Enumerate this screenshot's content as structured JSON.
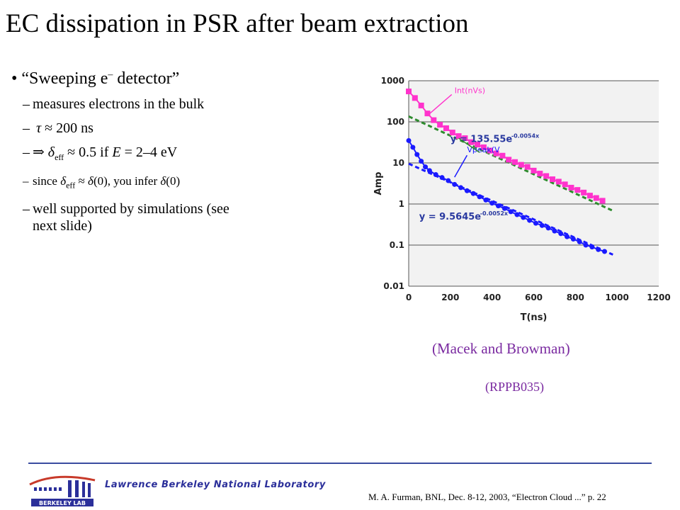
{
  "slide": {
    "title": "EC dissipation in PSR after beam extraction",
    "bullet": "“Sweeping e",
    "bullet_sup": "–",
    "bullet_tail": " detector”",
    "sub1": "measures electrons in the bulk",
    "sub2_sym": "τ",
    "sub2_text": " ≈ 200 ns",
    "sub3_arrow": "⇒",
    "sub3_sym": "δ",
    "sub3_sub": "eff",
    "sub3_mid": " ≈ 0.5 if ",
    "sub3_E": "E",
    "sub3_tail": " = 2–4 eV",
    "sub4_a": "since ",
    "sub4_sym": "δ",
    "sub4_sub": "eff",
    "sub4_b": " ≈ ",
    "sub4_sym2": "δ",
    "sub4_c": "(0), you infer ",
    "sub4_sym3": "δ",
    "sub4_d": "(0)",
    "sub5_l1": "well supported by simulations (see",
    "sub5_l2": "next slide)",
    "caption1": "(Macek and Browman)",
    "caption2": "(RPPB035)"
  },
  "footer": {
    "lab": "Lawrence Berkeley National Laboratory",
    "citation": "M. A. Furman, BNL, Dec. 8-12, 2003, “Electron Cloud ...”  p. 22"
  },
  "chart_data": {
    "type": "scatter",
    "xlabel": "T(ns)",
    "ylabel": "Amp",
    "y_scale": "log",
    "xlim": [
      0,
      1200
    ],
    "ylim": [
      0.01,
      1000
    ],
    "x_ticks": [
      "0",
      "200",
      "400",
      "600",
      "800",
      "1000",
      "1200"
    ],
    "y_ticks": [
      "1000",
      "100",
      "10",
      "1",
      "0.1",
      "0.01"
    ],
    "grid": "horizontal",
    "series": [
      {
        "name": "Int(nVs)",
        "color": "#ff33cc",
        "marker": "square",
        "x": [
          0,
          30,
          60,
          90,
          120,
          150,
          180,
          210,
          240,
          270,
          300,
          330,
          360,
          390,
          420,
          450,
          480,
          510,
          540,
          570,
          600,
          630,
          660,
          690,
          720,
          750,
          780,
          810,
          840,
          870,
          900,
          930
        ],
        "y": [
          550,
          380,
          250,
          160,
          110,
          85,
          70,
          55,
          45,
          40,
          32,
          28,
          24,
          20,
          17,
          15,
          12,
          10.5,
          9,
          8,
          6.5,
          5.5,
          4.8,
          4,
          3.5,
          3,
          2.5,
          2.2,
          1.9,
          1.6,
          1.4,
          1.2
        ]
      },
      {
        "name": "Vpeak(V)",
        "color": "#1a1aff",
        "marker": "circle",
        "x": [
          0,
          20,
          40,
          60,
          80,
          100,
          130,
          160,
          190,
          220,
          250,
          280,
          310,
          340,
          370,
          400,
          430,
          460,
          490,
          520,
          550,
          580,
          610,
          640,
          670,
          700,
          730,
          760,
          790,
          820,
          850,
          880,
          910,
          940
        ],
        "y": [
          35,
          24,
          16,
          11,
          8,
          6.5,
          5.2,
          4.4,
          3.7,
          3.0,
          2.5,
          2.1,
          1.8,
          1.5,
          1.25,
          1.05,
          0.9,
          0.78,
          0.65,
          0.55,
          0.47,
          0.4,
          0.34,
          0.3,
          0.26,
          0.22,
          0.19,
          0.16,
          0.14,
          0.12,
          0.1,
          0.09,
          0.078,
          0.07
        ]
      }
    ],
    "fits": [
      {
        "label": "y = 135.55e",
        "exp": "-0.0054x",
        "a": 135.55,
        "b": -0.0054,
        "color": "#2e8b2e",
        "range": [
          0,
          980
        ],
        "box_color": "#2e8b2e"
      },
      {
        "label": "y = 9.5645e",
        "exp": "-0.0052x",
        "a": 9.5645,
        "b": -0.0052,
        "color": "#1a1aff",
        "range": [
          0,
          980
        ],
        "box_color": "#1a1aff"
      }
    ],
    "annotations": [
      {
        "text": "Int(nVs)",
        "color": "#ff33cc",
        "x": 220,
        "y": 500
      },
      {
        "text": "Vpeak(V",
        "color": "#1a1aff",
        "x": 280,
        "y": 18
      }
    ]
  }
}
